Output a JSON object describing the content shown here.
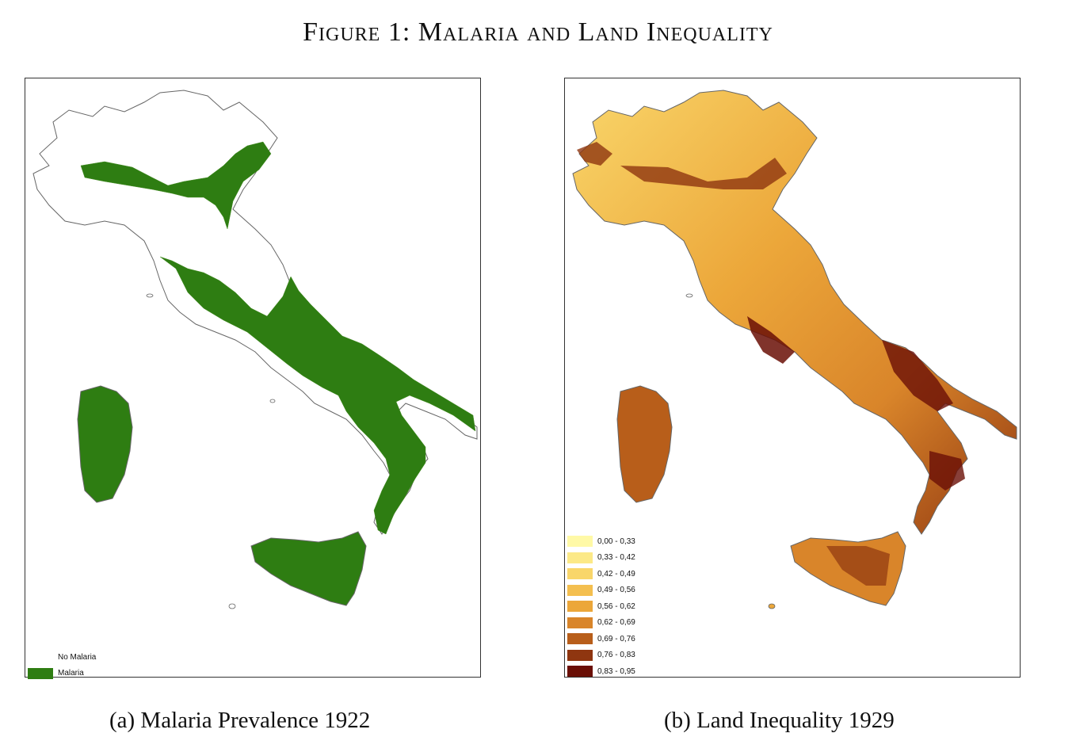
{
  "figure": {
    "title": "Figure 1: Malaria and Land Inequality"
  },
  "panel_a": {
    "caption": "(a)  Malaria Prevalence 1922",
    "legend": [
      {
        "label": "No Malaria",
        "color": "#ffffff"
      },
      {
        "label": "Malaria",
        "color": "#2e7d12"
      }
    ]
  },
  "panel_b": {
    "caption": "(b)  Land Inequality 1929",
    "legend": [
      {
        "label": "0,00 - 0,33",
        "color": "#fff9a6"
      },
      {
        "label": "0,33 - 0,42",
        "color": "#fce987"
      },
      {
        "label": "0,42 - 0,49",
        "color": "#f9d66a"
      },
      {
        "label": "0,49 - 0,56",
        "color": "#f4bf4f"
      },
      {
        "label": "0,56 - 0,62",
        "color": "#eca73a"
      },
      {
        "label": "0,62 - 0,69",
        "color": "#d9852a"
      },
      {
        "label": "0,69 - 0,76",
        "color": "#b85e1a"
      },
      {
        "label": "0,76 - 0,83",
        "color": "#8f3610"
      },
      {
        "label": "0,83 - 0,95",
        "color": "#6a0f06"
      }
    ]
  }
}
